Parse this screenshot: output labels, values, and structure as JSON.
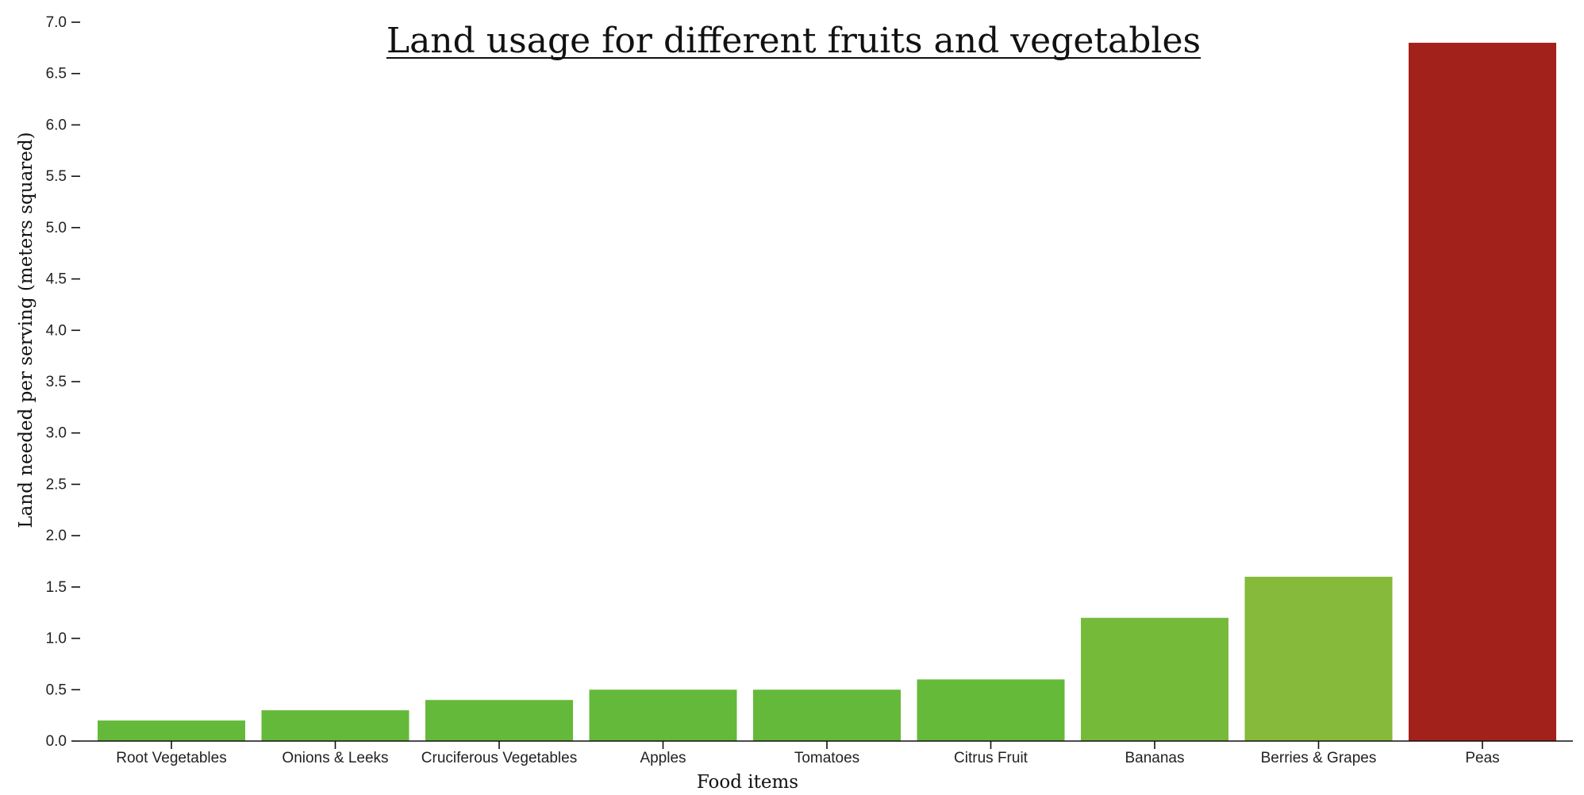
{
  "chart_data": {
    "type": "bar",
    "title": "Land usage for different fruits and vegetables",
    "xlabel": "Food items",
    "ylabel": "Land needed per serving (meters squared)",
    "ylim": [
      0,
      7.0
    ],
    "yticks": [
      "0.0",
      "0.5",
      "1.0",
      "1.5",
      "2.0",
      "2.5",
      "3.0",
      "3.5",
      "4.0",
      "4.5",
      "5.0",
      "5.5",
      "6.0",
      "6.5",
      "7.0"
    ],
    "categories": [
      "Root Vegetables",
      "Onions & Leeks",
      "Cruciferous Vegetables",
      "Apples",
      "Tomatoes",
      "Citrus Fruit",
      "Bananas",
      "Berries & Grapes",
      "Peas"
    ],
    "values": [
      0.2,
      0.3,
      0.4,
      0.5,
      0.5,
      0.6,
      1.2,
      1.6,
      6.8
    ],
    "colors": [
      "#64b93a",
      "#64b93a",
      "#64b93a",
      "#64b93a",
      "#64b93a",
      "#66ba3a",
      "#76ba3a",
      "#86ba3a",
      "#a3211b"
    ],
    "grid": false,
    "legend": "none"
  }
}
